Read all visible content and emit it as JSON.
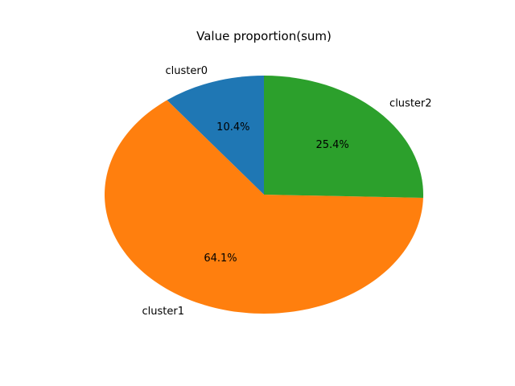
{
  "chart_data": {
    "type": "pie",
    "title": "Value proportion(sum)",
    "categories": [
      "cluster0",
      "cluster1",
      "cluster2"
    ],
    "values": [
      10.4,
      64.1,
      25.4
    ],
    "percent_labels": [
      "10.4%",
      "64.1%",
      "25.4%"
    ],
    "colors": [
      "#1f77b4",
      "#ff7f0e",
      "#2ca02c"
    ],
    "start_angle_deg": 90,
    "direction": "counterclockwise",
    "legend": "none"
  }
}
